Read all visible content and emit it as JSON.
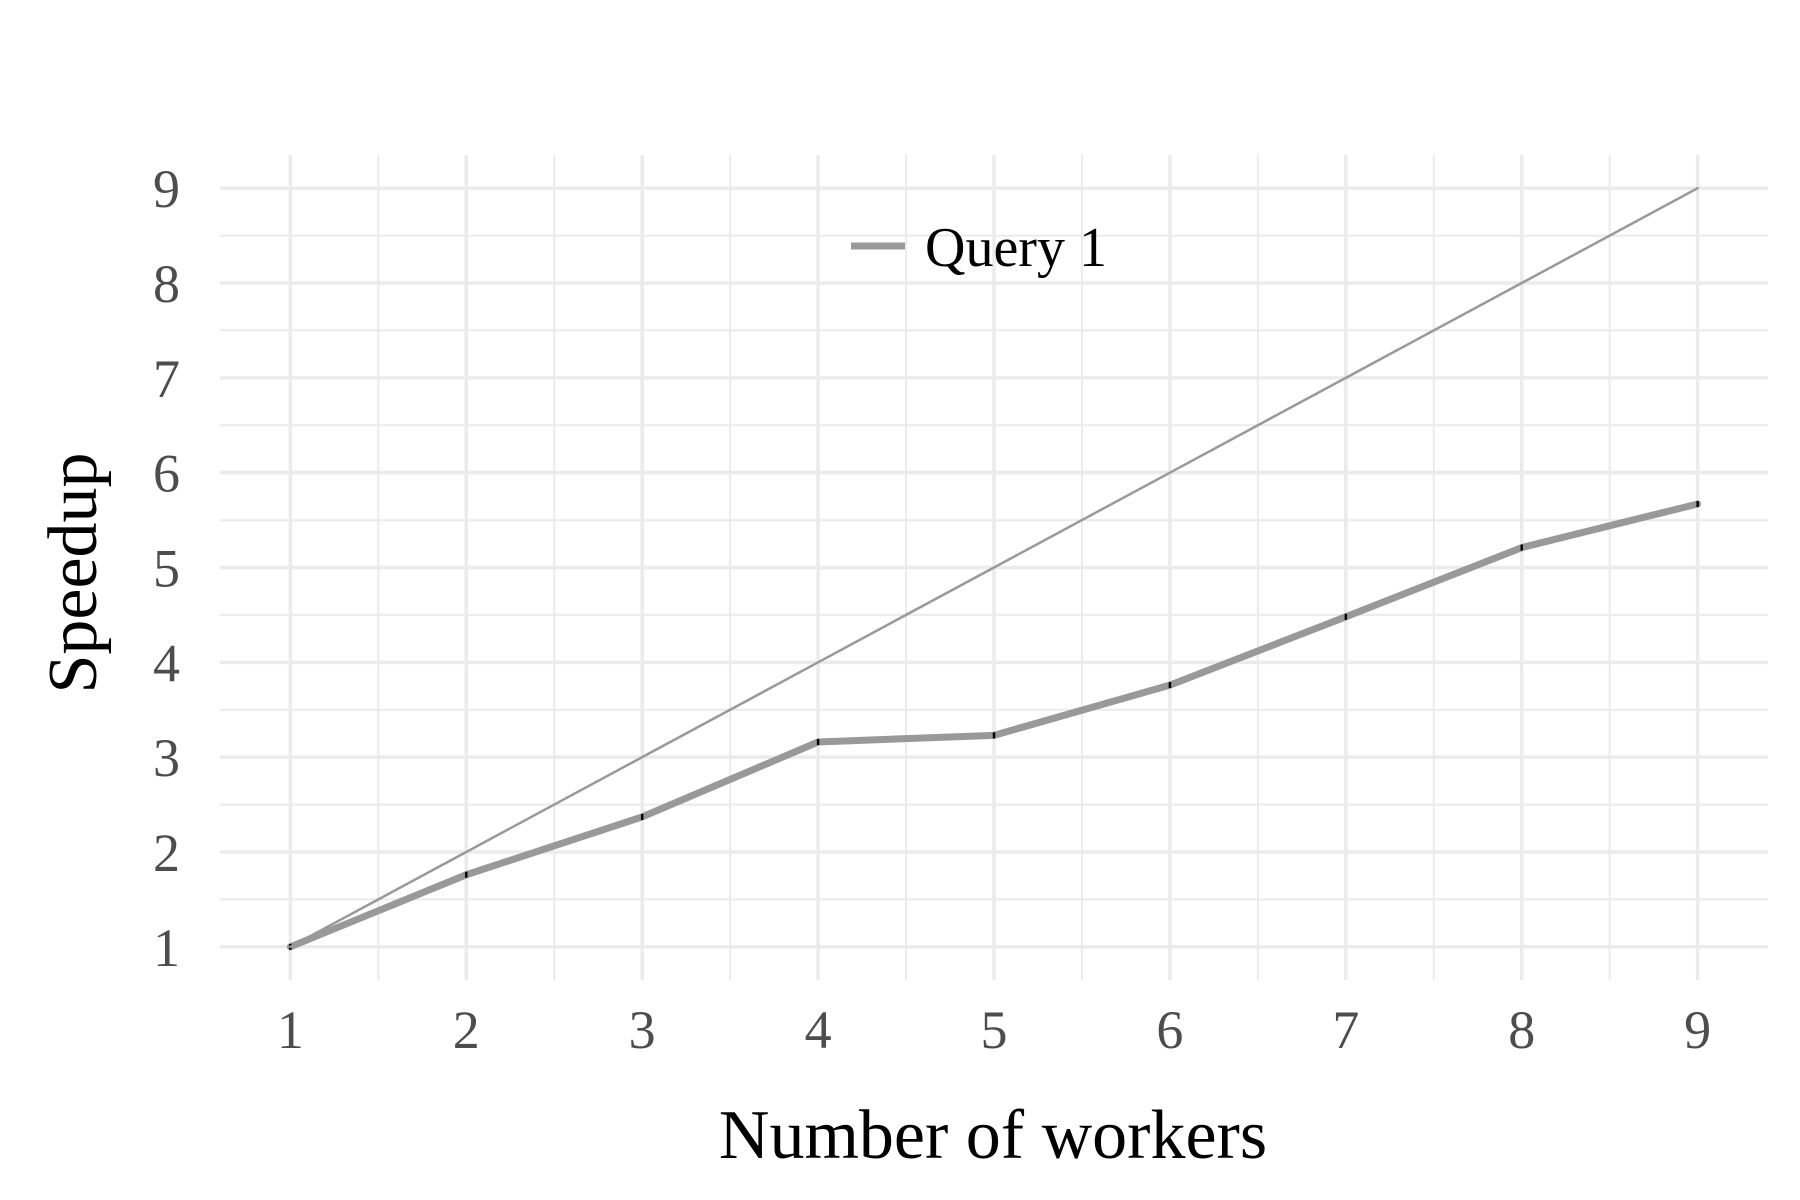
{
  "chart_data": {
    "type": "line",
    "xlabel": "Number of workers",
    "ylabel": "Speedup",
    "x": [
      1,
      2,
      3,
      4,
      5,
      6,
      7,
      8,
      9
    ],
    "xlim": [
      0.6,
      9.4
    ],
    "ylim": [
      0.65,
      9.35
    ],
    "xticks": [
      1,
      2,
      3,
      4,
      5,
      6,
      7,
      8,
      9
    ],
    "yticks": [
      1,
      2,
      3,
      4,
      5,
      6,
      7,
      8,
      9
    ],
    "grid": true,
    "legend_position": "top-center",
    "series": [
      {
        "name": "Query 1",
        "values": [
          1.0,
          1.76,
          2.37,
          3.16,
          3.23,
          3.76,
          4.48,
          5.21,
          5.67
        ],
        "color": "#999999",
        "style": "thick",
        "in_legend": true
      },
      {
        "name": "",
        "values": [
          1,
          2,
          3,
          4,
          5,
          6,
          7,
          8,
          9
        ],
        "color": "#999999",
        "style": "thin",
        "in_legend": false
      }
    ],
    "colors": {
      "grid": "#ebebeb",
      "tick_text": "#4d4d4d",
      "title_text": "#000000",
      "error_bar": "#000000"
    }
  }
}
